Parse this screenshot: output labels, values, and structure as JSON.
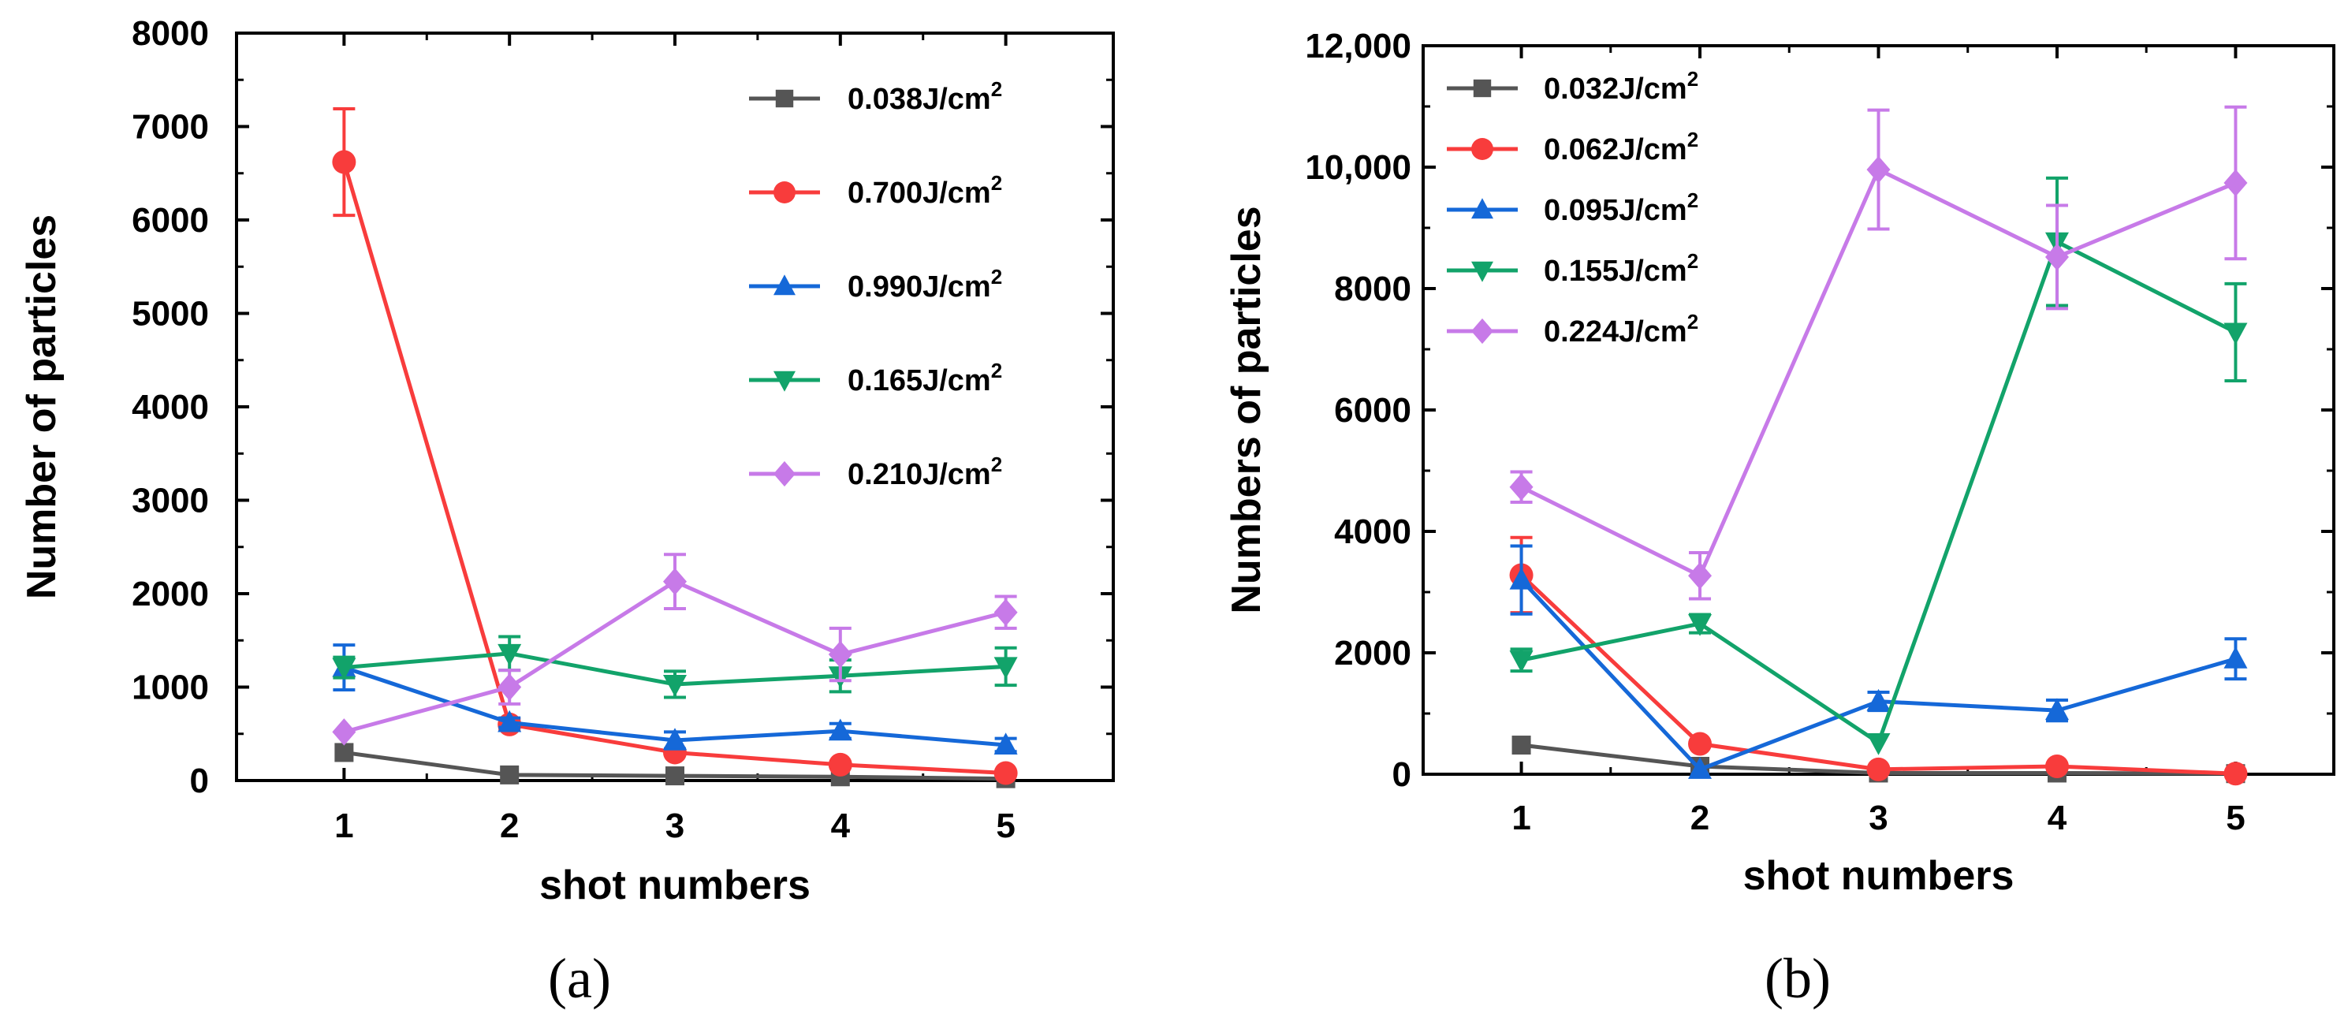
{
  "chart_data": [
    {
      "type": "line",
      "panel_label": "(a)",
      "title": "",
      "xlabel": "shot numbers",
      "ylabel": "Number of particles",
      "x": [
        1,
        2,
        3,
        4,
        5
      ],
      "x_ticks": [
        "1",
        "2",
        "3",
        "4",
        "5"
      ],
      "xlim": [
        0.35,
        5.65
      ],
      "ylim": [
        0,
        8000
      ],
      "y_ticks": [
        0,
        1000,
        2000,
        3000,
        4000,
        5000,
        6000,
        7000,
        8000
      ],
      "y_tick_labels": [
        "0",
        "1000",
        "2000",
        "3000",
        "4000",
        "5000",
        "6000",
        "7000",
        "8000"
      ],
      "legend_position": "top-right",
      "series": [
        {
          "name": "0.038J/cm",
          "sup": "2",
          "color": "#555555",
          "marker": "square",
          "values": [
            300,
            60,
            50,
            40,
            20
          ],
          "errors": [
            0,
            0,
            0,
            0,
            0
          ]
        },
        {
          "name": "0.700J/cm",
          "sup": "2",
          "color": "#f83c3c",
          "marker": "circle",
          "values": [
            6620,
            600,
            300,
            170,
            80
          ],
          "errors": [
            570,
            60,
            0,
            0,
            0
          ]
        },
        {
          "name": "0.990J/cm",
          "sup": "2",
          "color": "#1568d8",
          "marker": "triangle-up",
          "values": [
            1210,
            620,
            430,
            530,
            380
          ],
          "errors": [
            240,
            50,
            90,
            80,
            70
          ]
        },
        {
          "name": "0.165J/cm",
          "sup": "2",
          "color": "#12a36a",
          "marker": "triangle-down",
          "values": [
            1210,
            1360,
            1030,
            1120,
            1220
          ],
          "errors": [
            110,
            180,
            140,
            170,
            200
          ]
        },
        {
          "name": "0.210J/cm",
          "sup": "2",
          "color": "#c77ae8",
          "marker": "diamond",
          "values": [
            520,
            1000,
            2130,
            1350,
            1800
          ],
          "errors": [
            0,
            180,
            290,
            280,
            170
          ]
        }
      ]
    },
    {
      "type": "line",
      "panel_label": "(b)",
      "title": "",
      "xlabel": "shot numbers",
      "ylabel": "Numbers of particles",
      "x": [
        1,
        2,
        3,
        4,
        5
      ],
      "x_ticks": [
        "1",
        "2",
        "3",
        "4",
        "5"
      ],
      "xlim": [
        0.45,
        5.55
      ],
      "ylim": [
        0,
        12000
      ],
      "y_ticks": [
        0,
        2000,
        4000,
        6000,
        8000,
        10000,
        12000
      ],
      "y_tick_labels": [
        "0",
        "2000",
        "4000",
        "6000",
        "8000",
        "10,000",
        "12,000"
      ],
      "legend_position": "top-left",
      "series": [
        {
          "name": "0.032J/cm",
          "sup": "2",
          "color": "#555555",
          "marker": "square",
          "values": [
            480,
            130,
            20,
            20,
            10
          ],
          "errors": [
            0,
            0,
            0,
            0,
            0
          ]
        },
        {
          "name": "0.062J/cm",
          "sup": "2",
          "color": "#f83c3c",
          "marker": "circle",
          "values": [
            3280,
            500,
            80,
            130,
            10
          ],
          "errors": [
            620,
            0,
            0,
            0,
            0
          ]
        },
        {
          "name": "0.095J/cm",
          "sup": "2",
          "color": "#1568d8",
          "marker": "triangle-up",
          "values": [
            3200,
            80,
            1200,
            1050,
            1900
          ],
          "errors": [
            560,
            0,
            150,
            170,
            330
          ]
        },
        {
          "name": "0.155J/cm",
          "sup": "2",
          "color": "#12a36a",
          "marker": "triangle-down",
          "values": [
            1880,
            2480,
            520,
            8770,
            7280
          ],
          "errors": [
            180,
            150,
            0,
            1050,
            800
          ]
        },
        {
          "name": "0.224J/cm",
          "sup": "2",
          "color": "#c77ae8",
          "marker": "diamond",
          "values": [
            4730,
            3270,
            9960,
            8520,
            9740
          ],
          "errors": [
            250,
            380,
            980,
            850,
            1250
          ]
        }
      ]
    }
  ]
}
